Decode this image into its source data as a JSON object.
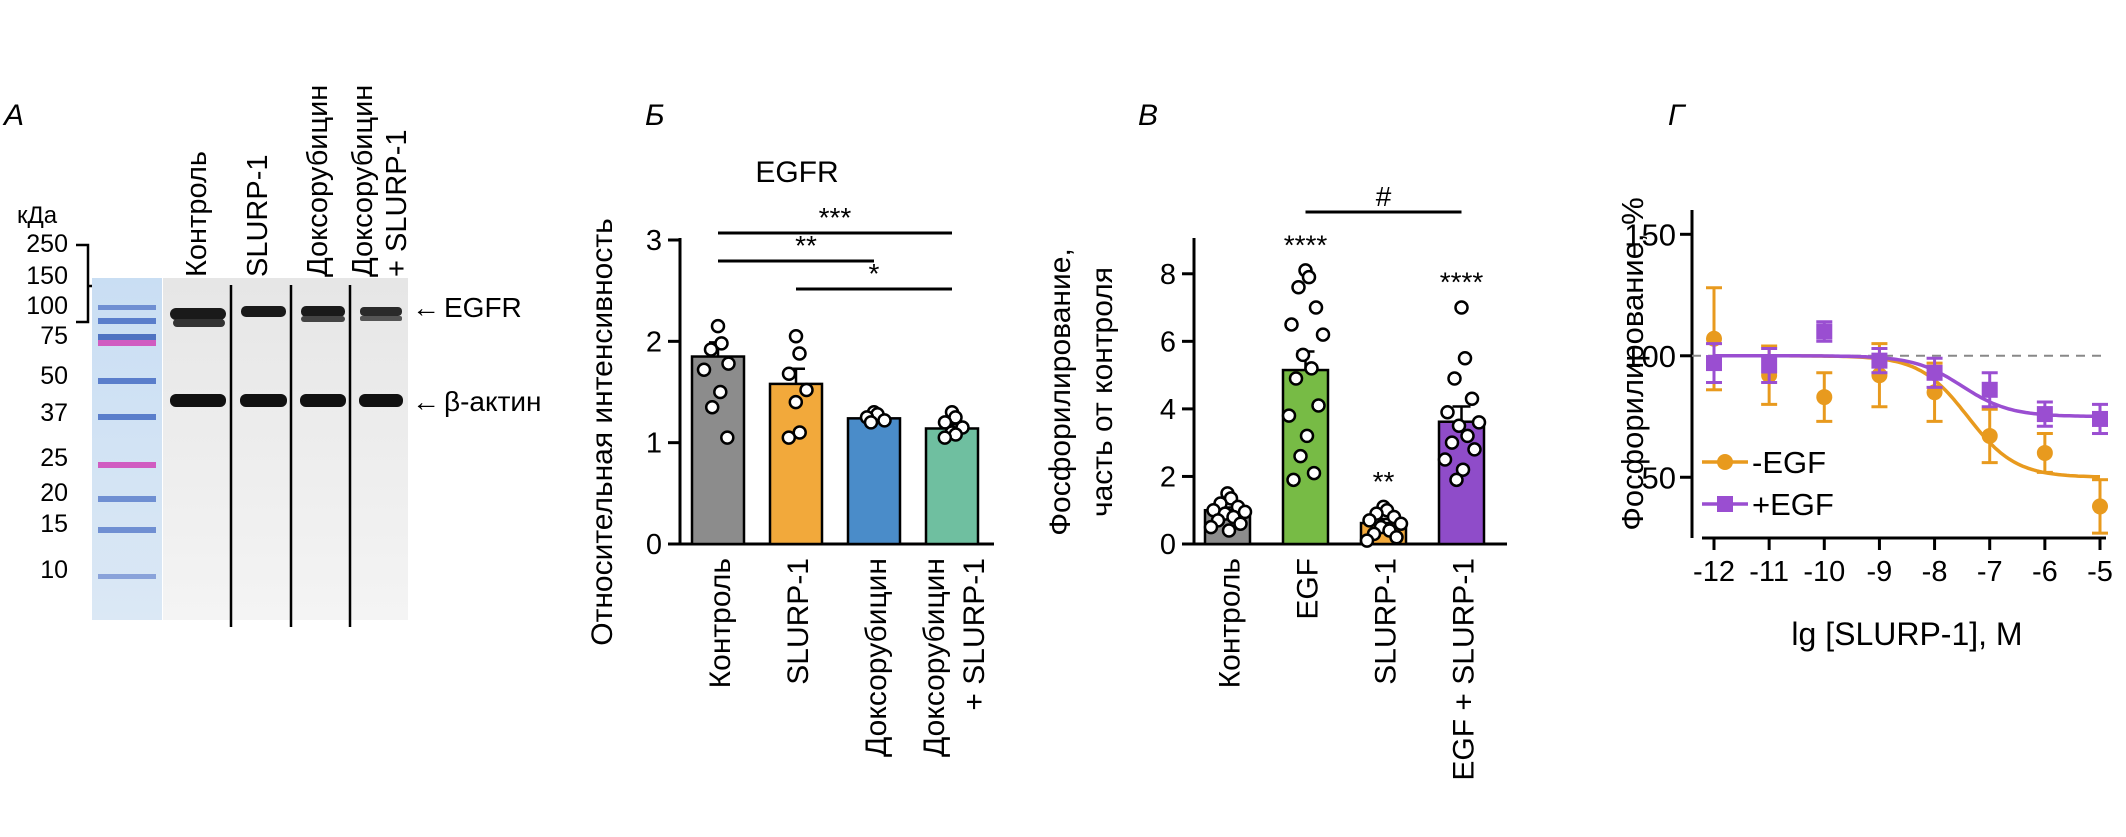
{
  "panels": {
    "a": "А",
    "b": "Б",
    "c": "В",
    "d": "Г"
  },
  "blot": {
    "kda_label": "кДа",
    "markers": [
      "250",
      "150",
      "100",
      "75",
      "50",
      "37",
      "25",
      "20",
      "15",
      "10"
    ],
    "lanes": [
      "Контроль",
      "SLURP-1",
      "Доксорубицин",
      "Доксорубицин",
      "+ SLURP-1"
    ],
    "band_labels": [
      "EGFR",
      "β-актин"
    ],
    "arrow": "←"
  },
  "chart_data": [
    {
      "type": "bar",
      "panel": "Б",
      "title": "EGFR",
      "ylabel": "Относительная интенсивность",
      "ylim": [
        0,
        3
      ],
      "yticks": [
        "0",
        "1",
        "2",
        "3"
      ],
      "categories": [
        "Контроль",
        "SLURP-1",
        "Доксорубицин",
        "Доксорубицин\n+ SLURP-1"
      ],
      "category_lines": [
        [
          "Контроль"
        ],
        [
          "SLURP-1"
        ],
        [
          "Доксорубицин"
        ],
        [
          "Доксорубицин",
          "+ SLURP-1"
        ]
      ],
      "values": [
        1.85,
        1.58,
        1.24,
        1.14
      ],
      "errors": [
        0.14,
        0.15,
        0.03,
        0.04
      ],
      "points": [
        [
          2.15,
          1.98,
          1.92,
          1.78,
          1.72,
          1.5,
          1.35,
          1.05
        ],
        [
          2.05,
          1.88,
          1.68,
          1.52,
          1.4,
          1.1,
          1.05
        ],
        [
          1.3,
          1.28,
          1.25,
          1.22,
          1.2
        ],
        [
          1.3,
          1.25,
          1.2,
          1.15,
          1.1,
          1.08,
          1.05
        ]
      ],
      "colors": [
        "#8c8c8c",
        "#f2a93b",
        "#4a8cc9",
        "#6fbfa0"
      ],
      "significance": [
        {
          "from": 0,
          "to": 3,
          "label": "***"
        },
        {
          "from": 0,
          "to": 2,
          "label": "**"
        },
        {
          "from": 1,
          "to": 3,
          "label": "*"
        }
      ]
    },
    {
      "type": "bar",
      "panel": "В",
      "title": "",
      "ylabel": "Фосфорилирование,\nчасть от контроля",
      "ylabel_lines": [
        "Фосфорилирование,",
        "часть от контроля"
      ],
      "ylim": [
        0,
        9
      ],
      "yticks": [
        "0",
        "2",
        "4",
        "6",
        "8"
      ],
      "categories": [
        "Контроль",
        "EGF",
        "SLURP-1",
        "EGF + SLURP-1"
      ],
      "category_lines": [
        [
          "Контроль"
        ],
        [
          "EGF"
        ],
        [
          "SLURP-1"
        ],
        [
          "EGF + SLURP-1"
        ]
      ],
      "values": [
        1.0,
        5.15,
        0.62,
        3.62
      ],
      "errors": [
        0.08,
        0.55,
        0.12,
        0.45
      ],
      "points": [
        [
          1.5,
          1.35,
          1.2,
          1.1,
          1.0,
          0.95,
          0.9,
          0.8,
          0.7,
          0.6,
          0.5,
          0.4
        ],
        [
          8.1,
          7.9,
          7.6,
          7.0,
          6.5,
          6.2,
          5.6,
          5.2,
          4.9,
          4.1,
          3.8,
          3.2,
          2.6,
          2.1,
          1.9
        ],
        [
          1.1,
          1.0,
          0.9,
          0.8,
          0.7,
          0.6,
          0.5,
          0.4,
          0.3,
          0.2,
          0.1
        ],
        [
          7.0,
          5.5,
          4.9,
          4.3,
          3.9,
          3.6,
          3.5,
          3.2,
          3.0,
          2.8,
          2.5,
          2.2,
          1.9
        ]
      ],
      "colors": [
        "#8c8c8c",
        "#77bb45",
        "#f2a93b",
        "#8f4cc9"
      ],
      "point_labels": [
        "",
        "****",
        "**",
        "****"
      ],
      "significance": [
        {
          "from": 1,
          "to": 3,
          "label": "#"
        }
      ]
    },
    {
      "type": "line",
      "panel": "Г",
      "ylabel": "Фосфорилирование, %",
      "xlabel": "lg [SLURP-1], M",
      "xlim": [
        -12,
        -5
      ],
      "ylim": [
        25,
        160
      ],
      "xticks": [
        "-12",
        "-11",
        "-10",
        "-9",
        "-8",
        "-7",
        "-6",
        "-5"
      ],
      "yticks": [
        "50",
        "100",
        "150"
      ],
      "reference_line": 100,
      "series": [
        {
          "name": "-EGF",
          "color": "#e89a1e",
          "marker": "circle",
          "x": [
            -12,
            -11,
            -10,
            -9,
            -8,
            -7,
            -6,
            -5
          ],
          "y": [
            107,
            92,
            83,
            92,
            85,
            67,
            60,
            38
          ],
          "err": [
            21,
            12,
            10,
            13,
            12,
            11,
            8,
            11
          ],
          "fit": {
            "top": 100,
            "bottom": 50,
            "logIC50": -7.4,
            "hill": 1.0
          }
        },
        {
          "name": "+EGF",
          "color": "#9a4ed1",
          "marker": "square",
          "x": [
            -12,
            -11,
            -10,
            -9,
            -8,
            -7,
            -6,
            -5
          ],
          "y": [
            97,
            96,
            110,
            98,
            93,
            86,
            76,
            74
          ],
          "err": [
            8,
            7,
            4,
            5,
            6,
            7,
            5,
            6
          ],
          "fit": {
            "top": 100,
            "bottom": 75,
            "logIC50": -7.5,
            "hill": 1.0
          }
        }
      ]
    }
  ]
}
